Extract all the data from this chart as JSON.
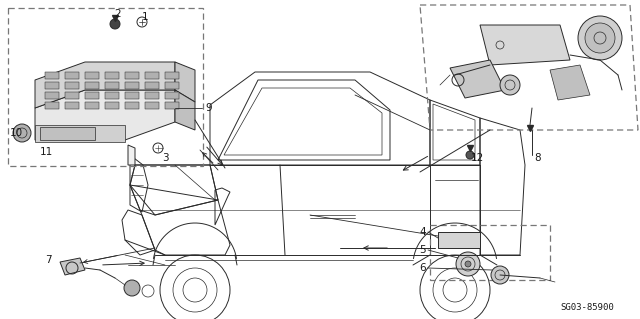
{
  "background_color": "#ffffff",
  "fig_width": 6.4,
  "fig_height": 3.19,
  "dpi": 100,
  "line_color": "#2a2a2a",
  "text_color": "#1a1a1a",
  "border_color": "#555555",
  "ref_code": "SG03-85900",
  "ref_fontsize": 6.5,
  "num_fontsize": 7.5,
  "car_lw": 0.7,
  "detail_lw": 0.5
}
